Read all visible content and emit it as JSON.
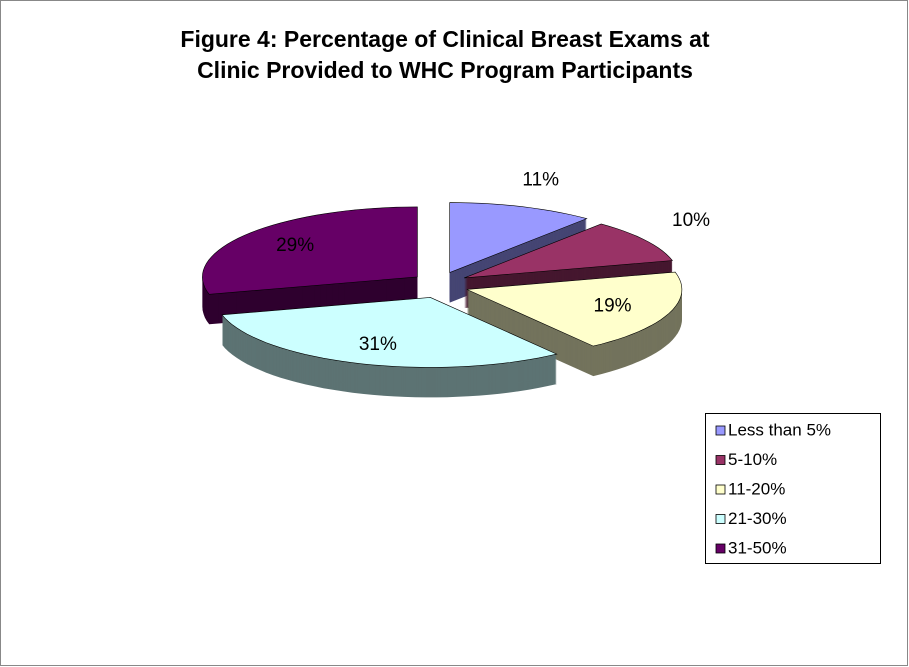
{
  "chart_data": {
    "type": "pie3d",
    "title": [
      "Figure 4: Percentage of Clinical Breast Exams at",
      "Clinic Provided to WHC Program Participants"
    ],
    "categories": [
      "Less than 5%",
      "5-10%",
      "11-20%",
      "21-30%",
      "31-50%"
    ],
    "values": [
      11,
      10,
      19,
      31,
      29
    ],
    "value_labels": [
      "11%",
      "10%",
      "19%",
      "31%",
      "29%"
    ],
    "colors": [
      "#9999ff",
      "#993366",
      "#ffffcc",
      "#ccffff",
      "#660066"
    ],
    "legend": "right"
  }
}
